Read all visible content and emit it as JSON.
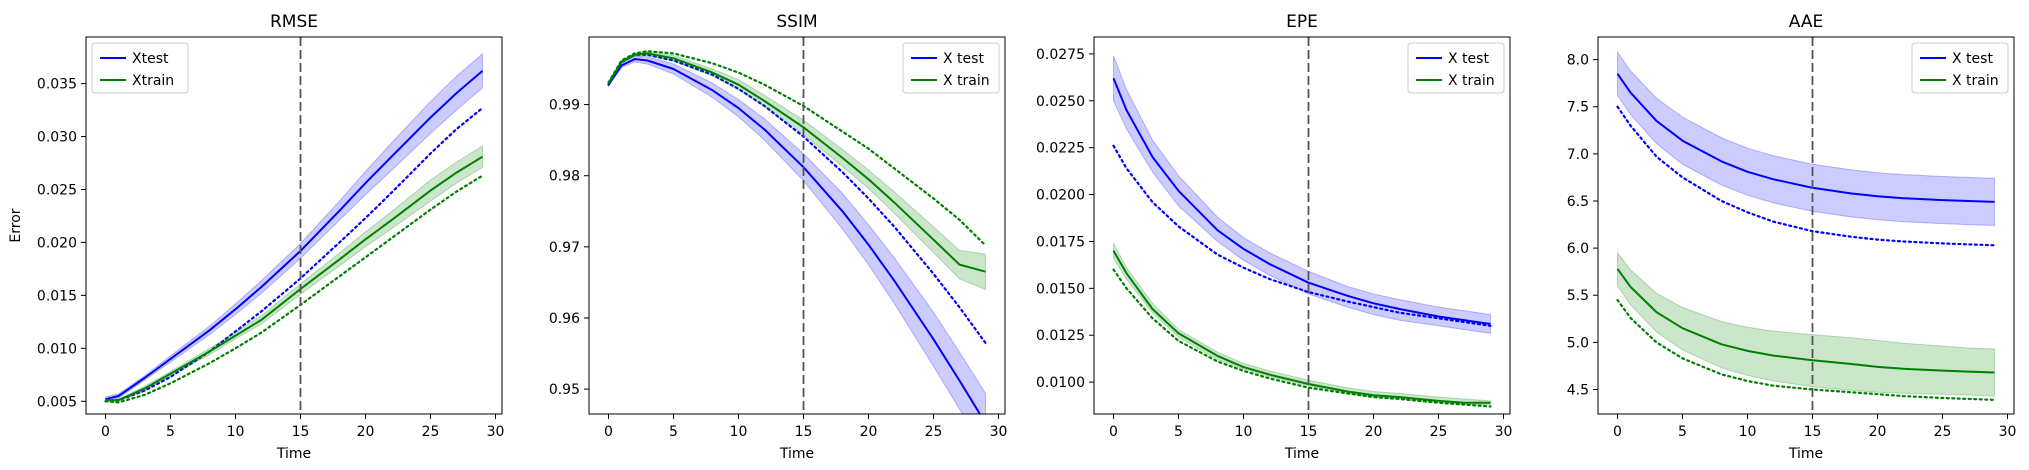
{
  "chart_data": [
    {
      "type": "line",
      "title": "RMSE",
      "xlabel": "Time",
      "ylabel": "Error",
      "xlim": [
        -1.5,
        30.5
      ],
      "ylim": [
        0.0038,
        0.0394
      ],
      "xticks": [
        0,
        5,
        10,
        15,
        20,
        25,
        30
      ],
      "yticks": [
        0.005,
        0.01,
        0.015,
        0.02,
        0.025,
        0.03,
        0.035
      ],
      "ytick_format": 3,
      "vline_x": 15,
      "legend": {
        "position": "top-left",
        "entries": [
          {
            "label": "Xtest",
            "color": "#0000ff"
          },
          {
            "label": "Xtrain",
            "color": "#008000"
          }
        ]
      },
      "series": [
        {
          "name": "Xtest",
          "color": "#0000ff",
          "x": [
            0,
            1,
            3,
            5,
            8,
            10,
            12,
            15,
            18,
            20,
            22,
            25,
            27,
            29
          ],
          "mean": [
            0.0052,
            0.0055,
            0.0072,
            0.009,
            0.0117,
            0.0137,
            0.0158,
            0.0192,
            0.023,
            0.0256,
            0.0281,
            0.0318,
            0.0341,
            0.0362
          ],
          "lower": [
            0.005,
            0.0053,
            0.007,
            0.0087,
            0.0113,
            0.0132,
            0.0152,
            0.0185,
            0.0221,
            0.0245,
            0.0268,
            0.0303,
            0.0325,
            0.0346
          ],
          "upper": [
            0.0054,
            0.0057,
            0.0074,
            0.0093,
            0.0121,
            0.0142,
            0.0164,
            0.0199,
            0.0239,
            0.0267,
            0.0294,
            0.0333,
            0.0357,
            0.0378
          ],
          "dotted": [
            0.005,
            0.0051,
            0.006,
            0.0073,
            0.0097,
            0.0116,
            0.0135,
            0.0166,
            0.02,
            0.0223,
            0.0247,
            0.0284,
            0.0307,
            0.0327
          ]
        },
        {
          "name": "Xtrain",
          "color": "#008000",
          "x": [
            0,
            1,
            3,
            5,
            8,
            10,
            12,
            15,
            18,
            20,
            22,
            25,
            27,
            29
          ],
          "mean": [
            0.0051,
            0.0051,
            0.0062,
            0.0076,
            0.0097,
            0.0112,
            0.0127,
            0.0156,
            0.0184,
            0.0203,
            0.0221,
            0.0249,
            0.0266,
            0.0281
          ],
          "lower": [
            0.005,
            0.005,
            0.006,
            0.0074,
            0.0094,
            0.0109,
            0.0123,
            0.0151,
            0.0178,
            0.0196,
            0.0213,
            0.0239,
            0.0256,
            0.0271
          ],
          "upper": [
            0.0052,
            0.0052,
            0.0064,
            0.0078,
            0.01,
            0.0115,
            0.0131,
            0.0161,
            0.019,
            0.021,
            0.0229,
            0.0259,
            0.0276,
            0.0291
          ],
          "dotted": [
            0.005,
            0.0049,
            0.0056,
            0.0067,
            0.0086,
            0.01,
            0.0115,
            0.0141,
            0.0168,
            0.0186,
            0.0204,
            0.0231,
            0.0248,
            0.0263
          ]
        }
      ]
    },
    {
      "type": "line",
      "title": "SSIM",
      "xlabel": "Time",
      "ylabel": "",
      "xlim": [
        -1.5,
        30.5
      ],
      "ylim": [
        0.9465,
        0.9995
      ],
      "xticks": [
        0,
        5,
        10,
        15,
        20,
        25,
        30
      ],
      "yticks": [
        0.95,
        0.96,
        0.97,
        0.98,
        0.99
      ],
      "ytick_format": 2,
      "vline_x": 15,
      "legend": {
        "position": "top-right",
        "entries": [
          {
            "label": "X test",
            "color": "#0000ff"
          },
          {
            "label": "X train",
            "color": "#008000"
          }
        ]
      },
      "series": [
        {
          "name": "X test",
          "color": "#0000ff",
          "x": [
            0,
            1,
            2,
            3,
            5,
            8,
            10,
            12,
            15,
            18,
            20,
            22,
            25,
            27,
            29
          ],
          "mean": [
            0.9928,
            0.9955,
            0.9964,
            0.9962,
            0.995,
            0.992,
            0.9895,
            0.9865,
            0.9812,
            0.975,
            0.9703,
            0.9652,
            0.957,
            0.9512,
            0.9452
          ],
          "lower": [
            0.9926,
            0.9952,
            0.996,
            0.9957,
            0.9943,
            0.991,
            0.9883,
            0.985,
            0.9793,
            0.9725,
            0.9675,
            0.962,
            0.9532,
            0.9472,
            0.941
          ],
          "upper": [
            0.993,
            0.9958,
            0.9968,
            0.9967,
            0.9957,
            0.993,
            0.9907,
            0.988,
            0.9831,
            0.9775,
            0.9731,
            0.9684,
            0.9608,
            0.9552,
            0.9494
          ],
          "dotted": [
            0.9928,
            0.996,
            0.997,
            0.997,
            0.9962,
            0.9942,
            0.9922,
            0.9898,
            0.9855,
            0.9805,
            0.9768,
            0.9728,
            0.9662,
            0.9615,
            0.9565
          ]
        },
        {
          "name": "X train",
          "color": "#008000",
          "x": [
            0,
            1,
            2,
            3,
            5,
            8,
            10,
            12,
            15,
            18,
            20,
            22,
            25,
            27,
            29
          ],
          "mean": [
            0.993,
            0.996,
            0.997,
            0.9972,
            0.9965,
            0.9945,
            0.9928,
            0.9905,
            0.9868,
            0.9825,
            0.9795,
            0.9762,
            0.971,
            0.9675,
            0.9665
          ],
          "lower": [
            0.9929,
            0.9958,
            0.9968,
            0.9969,
            0.9961,
            0.994,
            0.9921,
            0.9897,
            0.9858,
            0.9813,
            0.9782,
            0.9747,
            0.9692,
            0.9655,
            0.964
          ],
          "upper": [
            0.9931,
            0.9962,
            0.9972,
            0.9975,
            0.9969,
            0.995,
            0.9935,
            0.9913,
            0.9878,
            0.9837,
            0.9808,
            0.9777,
            0.9728,
            0.9695,
            0.969
          ],
          "dotted": [
            0.9931,
            0.9962,
            0.9972,
            0.9975,
            0.9972,
            0.9958,
            0.9945,
            0.9928,
            0.9898,
            0.9862,
            0.9838,
            0.981,
            0.9768,
            0.9738,
            0.9702
          ]
        }
      ]
    },
    {
      "type": "line",
      "title": "EPE",
      "xlabel": "Time",
      "ylabel": "",
      "xlim": [
        -1.5,
        30.5
      ],
      "ylim": [
        0.0083,
        0.0284
      ],
      "xticks": [
        0,
        5,
        10,
        15,
        20,
        25,
        30
      ],
      "yticks": [
        0.01,
        0.0125,
        0.015,
        0.0175,
        0.02,
        0.0225,
        0.025,
        0.0275
      ],
      "ytick_format": 4,
      "vline_x": 15,
      "legend": {
        "position": "top-right",
        "entries": [
          {
            "label": "X test",
            "color": "#0000ff"
          },
          {
            "label": "X train",
            "color": "#008000"
          }
        ]
      },
      "series": [
        {
          "name": "X test",
          "color": "#0000ff",
          "x": [
            0,
            1,
            3,
            5,
            8,
            10,
            12,
            15,
            18,
            20,
            22,
            25,
            27,
            29
          ],
          "mean": [
            0.0262,
            0.0245,
            0.022,
            0.0202,
            0.0181,
            0.0171,
            0.0163,
            0.0153,
            0.0146,
            0.0142,
            0.0139,
            0.0135,
            0.0133,
            0.0131
          ],
          "lower": [
            0.025,
            0.0235,
            0.0212,
            0.0194,
            0.0175,
            0.0165,
            0.0157,
            0.0147,
            0.014,
            0.0136,
            0.0133,
            0.013,
            0.0128,
            0.0126
          ],
          "upper": [
            0.0274,
            0.0256,
            0.0229,
            0.021,
            0.0188,
            0.0177,
            0.0169,
            0.0159,
            0.0151,
            0.0147,
            0.0144,
            0.014,
            0.0138,
            0.0136
          ],
          "dotted": [
            0.0226,
            0.0214,
            0.0196,
            0.0183,
            0.0168,
            0.0161,
            0.0155,
            0.0148,
            0.0143,
            0.014,
            0.0137,
            0.0134,
            0.0132,
            0.013
          ]
        },
        {
          "name": "X train",
          "color": "#008000",
          "x": [
            0,
            1,
            3,
            5,
            8,
            10,
            12,
            15,
            18,
            20,
            22,
            25,
            27,
            29
          ],
          "mean": [
            0.017,
            0.0158,
            0.0139,
            0.0126,
            0.0114,
            0.0108,
            0.0104,
            0.0099,
            0.0095,
            0.0093,
            0.0092,
            0.009,
            0.0089,
            0.0089
          ],
          "lower": [
            0.0166,
            0.0155,
            0.0137,
            0.0124,
            0.0112,
            0.0107,
            0.0103,
            0.0098,
            0.0094,
            0.0092,
            0.0091,
            0.0089,
            0.0088,
            0.0088
          ],
          "upper": [
            0.0174,
            0.0161,
            0.0142,
            0.0128,
            0.0116,
            0.011,
            0.0106,
            0.0101,
            0.0097,
            0.0095,
            0.0094,
            0.0092,
            0.0091,
            0.009
          ],
          "dotted": [
            0.016,
            0.015,
            0.0134,
            0.0122,
            0.0111,
            0.0106,
            0.0102,
            0.0097,
            0.0094,
            0.0092,
            0.0091,
            0.0089,
            0.0088,
            0.0087
          ]
        }
      ]
    },
    {
      "type": "line",
      "title": "AAE",
      "xlabel": "Time",
      "ylabel": "",
      "xlim": [
        -1.5,
        30.5
      ],
      "ylim": [
        4.24,
        8.24
      ],
      "xticks": [
        0,
        5,
        10,
        15,
        20,
        25,
        30
      ],
      "yticks": [
        4.5,
        5.0,
        5.5,
        6.0,
        6.5,
        7.0,
        7.5,
        8.0
      ],
      "ytick_format": 1,
      "vline_x": 15,
      "legend": {
        "position": "top-right",
        "entries": [
          {
            "label": "X test",
            "color": "#0000ff"
          },
          {
            "label": "X train",
            "color": "#008000"
          }
        ]
      },
      "series": [
        {
          "name": "X test",
          "color": "#0000ff",
          "x": [
            0,
            1,
            3,
            5,
            8,
            10,
            12,
            15,
            18,
            20,
            22,
            25,
            27,
            29
          ],
          "mean": [
            7.85,
            7.65,
            7.35,
            7.14,
            6.92,
            6.81,
            6.73,
            6.64,
            6.58,
            6.55,
            6.53,
            6.51,
            6.5,
            6.49
          ],
          "lower": [
            7.62,
            7.42,
            7.11,
            6.89,
            6.67,
            6.56,
            6.48,
            6.39,
            6.33,
            6.3,
            6.28,
            6.26,
            6.25,
            6.24
          ],
          "upper": [
            8.08,
            7.88,
            7.59,
            7.39,
            7.17,
            7.06,
            6.98,
            6.89,
            6.83,
            6.8,
            6.78,
            6.76,
            6.75,
            6.74
          ],
          "dotted": [
            7.5,
            7.3,
            6.97,
            6.75,
            6.5,
            6.38,
            6.28,
            6.18,
            6.12,
            6.09,
            6.07,
            6.05,
            6.04,
            6.03
          ]
        },
        {
          "name": "X train",
          "color": "#008000",
          "x": [
            0,
            1,
            3,
            5,
            8,
            10,
            12,
            15,
            18,
            20,
            22,
            25,
            27,
            29
          ],
          "mean": [
            5.78,
            5.59,
            5.32,
            5.15,
            4.98,
            4.91,
            4.86,
            4.81,
            4.77,
            4.74,
            4.72,
            4.7,
            4.69,
            4.68
          ],
          "lower": [
            5.6,
            5.4,
            5.11,
            4.92,
            4.73,
            4.65,
            4.59,
            4.53,
            4.49,
            4.47,
            4.46,
            4.45,
            4.44,
            4.43
          ],
          "upper": [
            5.95,
            5.77,
            5.52,
            5.37,
            5.22,
            5.16,
            5.12,
            5.08,
            5.05,
            5.02,
            4.99,
            4.96,
            4.94,
            4.93
          ],
          "dotted": [
            5.45,
            5.26,
            5.0,
            4.83,
            4.66,
            4.59,
            4.54,
            4.5,
            4.47,
            4.45,
            4.43,
            4.41,
            4.4,
            4.39
          ]
        }
      ]
    }
  ]
}
